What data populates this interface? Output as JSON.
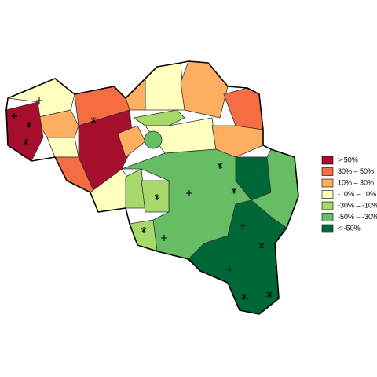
{
  "legend": {
    "items": [
      {
        "label": "> 50%",
        "color": "#a50f2d"
      },
      {
        "label": "30%  –  50%",
        "color": "#f46d43"
      },
      {
        "label": "10%  –  30%",
        "color": "#fdae61"
      },
      {
        "label": "-10%  –  10%",
        "color": "#ffffbf"
      },
      {
        "label": "-30%  –  -10%",
        "color": "#a6d96a"
      },
      {
        "label": "-50%  –  -30%",
        "color": "#66bd63"
      },
      {
        "label": "< -50%",
        "color": "#006837"
      }
    ]
  }
}
